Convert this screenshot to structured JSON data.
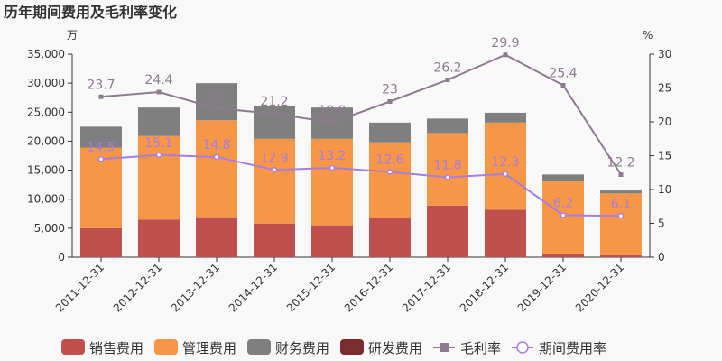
{
  "chart_data": {
    "type": "bar",
    "title": "历年期间费用及毛利率变化",
    "left_unit": "万",
    "right_unit": "%",
    "categories": [
      "2011-12-31",
      "2012-12-31",
      "2013-12-31",
      "2014-12-31",
      "2015-12-31",
      "2016-12-31",
      "2017-12-31",
      "2018-12-31",
      "2019-12-31",
      "2020-12-31"
    ],
    "y_left": {
      "min": 0,
      "max": 35000,
      "ticks": [
        0,
        5000,
        10000,
        15000,
        20000,
        25000,
        30000,
        35000
      ],
      "tick_labels": [
        "0",
        "5,000",
        "10,000",
        "15,000",
        "20,000",
        "25,000",
        "30,000",
        "35,000"
      ]
    },
    "y_right": {
      "min": 0,
      "max": 30,
      "ticks": [
        0,
        5,
        10,
        15,
        20,
        25,
        30
      ],
      "tick_labels": [
        "0",
        "5",
        "10",
        "15",
        "20",
        "25",
        "30"
      ]
    },
    "bar_series": [
      {
        "name": "销售费用",
        "color": "#c0504d",
        "values": [
          5000,
          6500,
          6900,
          5800,
          5500,
          6800,
          8900,
          8200,
          650,
          500
        ]
      },
      {
        "name": "管理费用",
        "color": "#f79646",
        "values": [
          13900,
          14400,
          16700,
          14600,
          14900,
          13000,
          12500,
          15000,
          12400,
          10500
        ]
      },
      {
        "name": "财务费用",
        "color": "#7f7f7f",
        "values": [
          3600,
          4900,
          6400,
          5700,
          5400,
          3400,
          2500,
          1700,
          1200,
          500
        ]
      },
      {
        "name": "研发费用",
        "color": "#7b2c2c",
        "values": [
          0,
          0,
          0,
          0,
          0,
          0,
          0,
          0,
          0,
          0
        ]
      }
    ],
    "line_series": [
      {
        "name": "毛利率",
        "color": "#8c7b8c",
        "marker": "square",
        "values": [
          23.7,
          24.4,
          22,
          21.2,
          19.9,
          23,
          26.2,
          29.9,
          25.4,
          12.2
        ],
        "labels": [
          "23.7",
          "24.4",
          "22",
          "21.2",
          "19.9",
          "23",
          "26.2",
          "29.9",
          "25.4",
          "12.2"
        ]
      },
      {
        "name": "期间费用率",
        "color": "#a77de0",
        "marker": "circle",
        "values": [
          14.5,
          15.1,
          14.8,
          12.9,
          13.2,
          12.6,
          11.8,
          12.3,
          6.2,
          6.1
        ],
        "labels": [
          "14.5",
          "15.1",
          "14.8",
          "12.9",
          "13.2",
          "12.6",
          "11.8",
          "12.3",
          "6.2",
          "6.1"
        ]
      }
    ],
    "legend_position": "bottom",
    "grid": false
  }
}
